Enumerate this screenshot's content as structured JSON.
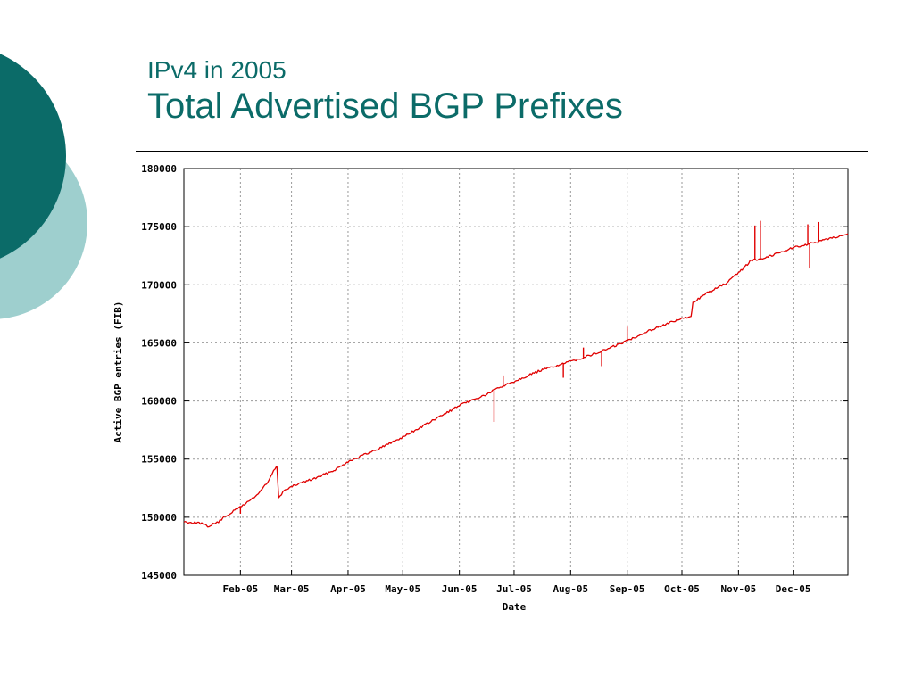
{
  "slide": {
    "subtitle": "IPv4 in 2005",
    "title": "Total Advertised BGP Prefixes",
    "colors": {
      "title": "#0b6b68",
      "dark_circle": "#0b6b68",
      "light_circle": "#9ecfce",
      "series": "#e00000"
    }
  },
  "chart_data": {
    "type": "line",
    "xlabel": "Date",
    "ylabel": "Active BGP entries (FIB)",
    "x_tick_labels": [
      "Feb-05",
      "Mar-05",
      "Apr-05",
      "May-05",
      "Jun-05",
      "Jul-05",
      "Aug-05",
      "Sep-05",
      "Oct-05",
      "Nov-05",
      "Dec-05"
    ],
    "x_tick_dates": [
      "2005-02-01",
      "2005-03-01",
      "2005-04-01",
      "2005-05-01",
      "2005-06-01",
      "2005-07-01",
      "2005-08-01",
      "2005-09-01",
      "2005-10-01",
      "2005-11-01",
      "2005-12-01"
    ],
    "x_range": [
      "2005-01-01",
      "2005-12-31"
    ],
    "ylim": [
      145000,
      180000
    ],
    "y_ticks": [
      145000,
      150000,
      155000,
      160000,
      165000,
      170000,
      175000,
      180000
    ],
    "grid": true,
    "series": [
      {
        "x": [
          "2005-01-01",
          "2005-01-10",
          "2005-01-14",
          "2005-01-20",
          "2005-01-24",
          "2005-01-31",
          "2005-02-04",
          "2005-02-10",
          "2005-02-16",
          "2005-02-20",
          "2005-02-21",
          "2005-02-22",
          "2005-02-25",
          "2005-03-05",
          "2005-03-15",
          "2005-03-25",
          "2005-04-01",
          "2005-04-15",
          "2005-05-01",
          "2005-05-15",
          "2005-06-01",
          "2005-06-15",
          "2005-06-22",
          "2005-07-01",
          "2005-07-15",
          "2005-08-01",
          "2005-08-15",
          "2005-08-31",
          "2005-09-01",
          "2005-09-15",
          "2005-10-01",
          "2005-10-06",
          "2005-10-07",
          "2005-10-15",
          "2005-10-25",
          "2005-11-01",
          "2005-11-08",
          "2005-11-15",
          "2005-12-01",
          "2005-12-15",
          "2005-12-31"
        ],
        "y": [
          149600,
          149500,
          149200,
          149600,
          150100,
          150800,
          151200,
          151900,
          153000,
          154200,
          154300,
          151700,
          152300,
          152900,
          153400,
          154100,
          154800,
          155700,
          156900,
          158100,
          159600,
          160500,
          161100,
          161700,
          162600,
          163400,
          164100,
          165100,
          165200,
          166200,
          167100,
          167200,
          168500,
          169300,
          170100,
          171000,
          172100,
          172300,
          173200,
          173700,
          174400
        ]
      }
    ],
    "spikes": [
      {
        "x": "2005-02-01",
        "y": 150300
      },
      {
        "x": "2005-06-20",
        "y": 158200
      },
      {
        "x": "2005-06-25",
        "y": 162200
      },
      {
        "x": "2005-07-28",
        "y": 162000
      },
      {
        "x": "2005-08-08",
        "y": 164600
      },
      {
        "x": "2005-08-18",
        "y": 163000
      },
      {
        "x": "2005-09-01",
        "y": 166400
      },
      {
        "x": "2005-11-10",
        "y": 175100
      },
      {
        "x": "2005-11-13",
        "y": 175500
      },
      {
        "x": "2005-12-09",
        "y": 175200
      },
      {
        "x": "2005-12-10",
        "y": 171400
      },
      {
        "x": "2005-12-15",
        "y": 175400
      }
    ]
  }
}
